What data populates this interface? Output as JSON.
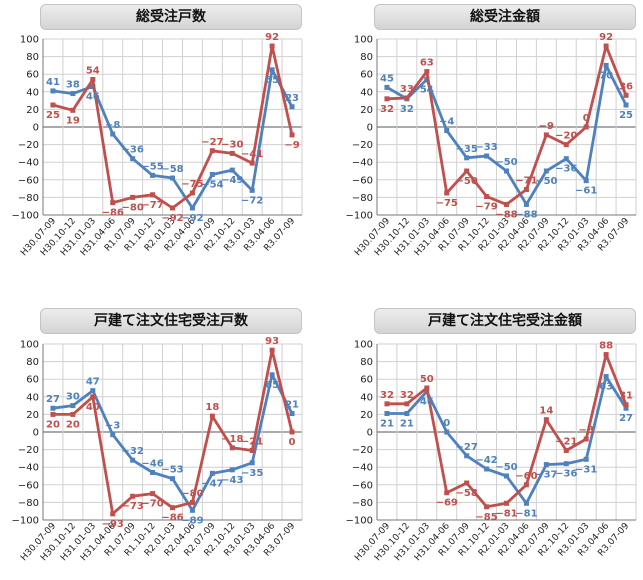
{
  "colors": {
    "series_a": "#4f81bd",
    "series_b": "#c0504d",
    "grid": "#d0d0d0"
  },
  "chart_data": [
    {
      "type": "line",
      "title": "総受注戸数",
      "categories": [
        "H30.07-09",
        "H30.10-12",
        "H31.01-03",
        "H31.04-06",
        "R1.07-09",
        "R1.10-12",
        "R2.01-03",
        "R2.04-06",
        "R2.07-09",
        "R2.10-12",
        "R3.01-03",
        "R3.04-06",
        "R3.07-09"
      ],
      "ylim": [
        -100,
        100
      ],
      "yticks": [
        "100",
        "80",
        "60",
        "40",
        "20",
        "0",
        "−20",
        "−40",
        "−60",
        "−80",
        "−100"
      ],
      "grid": true,
      "series": [
        {
          "values": [
            41,
            38,
            46,
            -8,
            -36,
            -55,
            -58,
            -92,
            -54,
            -49,
            -72,
            65,
            23
          ],
          "labels": [
            "41",
            "38",
            "46",
            "−8",
            "−36",
            "−55",
            "−58",
            "−92",
            "−54",
            "−49",
            "−72",
            "65",
            "23"
          ]
        },
        {
          "values": [
            25,
            19,
            54,
            -86,
            -80,
            -77,
            -92,
            -75,
            -27,
            -30,
            -41,
            92,
            -9
          ],
          "labels": [
            "25",
            "19",
            "54",
            "−86",
            "−80",
            "−77",
            "−92",
            "−75",
            "−27",
            "−30",
            "−41",
            "92",
            "−9"
          ]
        }
      ]
    },
    {
      "type": "line",
      "title": "総受注金額",
      "categories": [
        "H30.07-09",
        "H30.10-12",
        "H31.01-03",
        "H31.04-06",
        "R1.07-09",
        "R1.10-12",
        "R2.01-03",
        "R2.04-06",
        "R2.07-09",
        "R2.10-12",
        "R3.01-03",
        "R3.04-06",
        "R3.07-09"
      ],
      "ylim": [
        -100,
        100
      ],
      "yticks": [
        "100",
        "80",
        "60",
        "40",
        "20",
        "0",
        "−20",
        "−40",
        "−60",
        "−80",
        "−100"
      ],
      "grid": true,
      "series": [
        {
          "values": [
            45,
            32,
            54,
            -4,
            -35,
            -33,
            -50,
            -88,
            -50,
            -36,
            -61,
            70,
            25
          ],
          "labels": [
            "45",
            "32",
            "54",
            "−4",
            "−35",
            "−33",
            "−50",
            "−88",
            "−50",
            "−36",
            "−61",
            "70",
            "25"
          ]
        },
        {
          "values": [
            32,
            33,
            63,
            -75,
            -50,
            -79,
            -88,
            -71,
            -9,
            -20,
            0,
            92,
            36
          ],
          "labels": [
            "32",
            "33",
            "63",
            "−75",
            "−50",
            "−79",
            "−88",
            "−71",
            "−9",
            "−20",
            "0",
            "92",
            "36"
          ]
        }
      ]
    },
    {
      "type": "line",
      "title": "戸建て注文住宅受注戸数",
      "categories": [
        "H30.07-09",
        "H30.10-12",
        "H31.01-03",
        "H31.04-06",
        "R1.07-09",
        "R1.10-12",
        "R2.01-03",
        "R2.04-06",
        "R2.07-09",
        "R2.10-12",
        "R3.01-03",
        "R3.04-06",
        "R3.07-09"
      ],
      "ylim": [
        -100,
        100
      ],
      "yticks": [
        "100",
        "80",
        "60",
        "40",
        "20",
        "0",
        "−20",
        "−40",
        "−60",
        "−80",
        "−100"
      ],
      "grid": true,
      "series": [
        {
          "values": [
            27,
            30,
            47,
            -3,
            -32,
            -46,
            -53,
            -89,
            -47,
            -43,
            -35,
            65,
            21
          ],
          "labels": [
            "27",
            "30",
            "47",
            "−3",
            "−32",
            "−46",
            "−53",
            "−89",
            "−47",
            "−43",
            "−35",
            "65",
            "21"
          ]
        },
        {
          "values": [
            20,
            20,
            40,
            -93,
            -73,
            -70,
            -86,
            -80,
            18,
            -18,
            -21,
            93,
            0
          ],
          "labels": [
            "20",
            "20",
            "40",
            "−93",
            "−73",
            "−70",
            "−86",
            "−80",
            "18",
            "−18",
            "−21",
            "93",
            "0"
          ]
        }
      ]
    },
    {
      "type": "line",
      "title": "戸建て注文住宅受注金額",
      "categories": [
        "H30.07-09",
        "H30.10-12",
        "H31.01-03",
        "H31.04-06",
        "R1.07-09",
        "R1.10-12",
        "R2.01-03",
        "R2.04-06",
        "R2.07-09",
        "R2.10-12",
        "R3.01-03",
        "R3.04-06",
        "R3.07-09"
      ],
      "ylim": [
        -100,
        100
      ],
      "yticks": [
        "100",
        "80",
        "60",
        "40",
        "20",
        "0",
        "−20",
        "−40",
        "−60",
        "−80",
        "−100"
      ],
      "grid": true,
      "series": [
        {
          "values": [
            21,
            21,
            46,
            0,
            -27,
            -42,
            -50,
            -81,
            -37,
            -36,
            -31,
            63,
            27
          ],
          "labels": [
            "21",
            "21",
            "46",
            "0",
            "−27",
            "−42",
            "−50",
            "−81",
            "−37",
            "−36",
            "−31",
            "63",
            "27"
          ]
        },
        {
          "values": [
            32,
            32,
            50,
            -69,
            -58,
            -85,
            -81,
            -60,
            14,
            -21,
            -8,
            88,
            31
          ],
          "labels": [
            "32",
            "32",
            "50",
            "−69",
            "−58",
            "−85",
            "−81",
            "−60",
            "14",
            "−21",
            "−8",
            "88",
            "31"
          ]
        }
      ]
    }
  ]
}
